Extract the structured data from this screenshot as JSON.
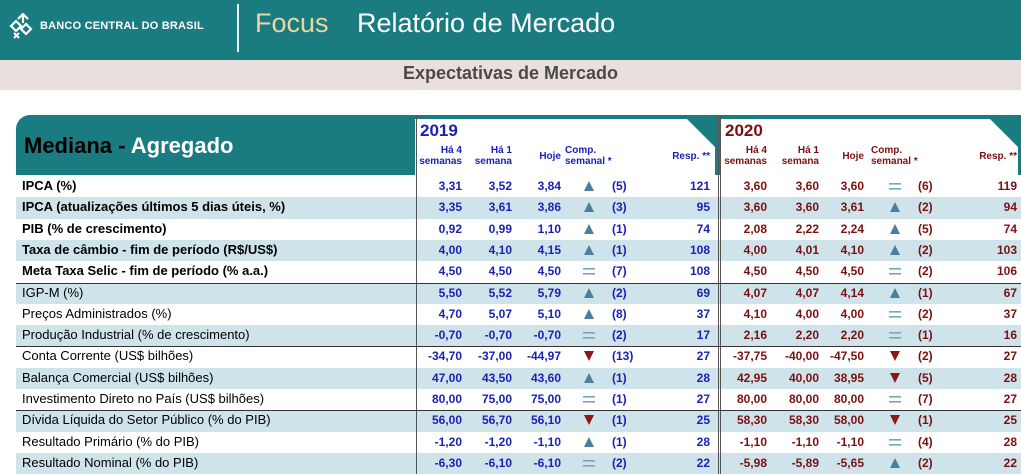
{
  "header": {
    "bank_name": "BANCO CENTRAL DO BRASIL",
    "focus": "Focus",
    "report_title": "Relatório de Mercado",
    "subtitle": "Expectativas de Mercado"
  },
  "colors": {
    "teal": "#1a7b80",
    "blue_2019": "#1a22b4",
    "red_2020": "#7a1010",
    "stripe": "#cfe4ea"
  },
  "table": {
    "title_main": "Mediana - ",
    "title_accent": "Agregado",
    "years": [
      "2019",
      "2020"
    ],
    "columns": {
      "ha4": [
        "Há 4",
        "semanas"
      ],
      "ha1": [
        "Há 1",
        "semana"
      ],
      "hoje": "Hoje",
      "comp": [
        "Comp.",
        "semanal *"
      ],
      "resp": "Resp. **"
    },
    "rows": [
      {
        "label": "IPCA (%)",
        "bold": true,
        "y2019": {
          "ha4": "3,31",
          "ha1": "3,52",
          "hoje": "3,84",
          "trend": "up",
          "weeks": "(5)",
          "resp": "121"
        },
        "y2020": {
          "ha4": "3,60",
          "ha1": "3,60",
          "hoje": "3,60",
          "trend": "eq",
          "weeks": "(6)",
          "resp": "119"
        }
      },
      {
        "label": "IPCA (atualizações últimos 5 dias úteis, %)",
        "bold": true,
        "y2019": {
          "ha4": "3,35",
          "ha1": "3,61",
          "hoje": "3,86",
          "trend": "up",
          "weeks": "(3)",
          "resp": "95"
        },
        "y2020": {
          "ha4": "3,60",
          "ha1": "3,60",
          "hoje": "3,61",
          "trend": "up",
          "weeks": "(2)",
          "resp": "94"
        }
      },
      {
        "label": "PIB (% de crescimento)",
        "bold": true,
        "y2019": {
          "ha4": "0,92",
          "ha1": "0,99",
          "hoje": "1,10",
          "trend": "up",
          "weeks": "(1)",
          "resp": "74"
        },
        "y2020": {
          "ha4": "2,08",
          "ha1": "2,22",
          "hoje": "2,24",
          "trend": "up",
          "weeks": "(5)",
          "resp": "74"
        }
      },
      {
        "label": "Taxa de câmbio - fim de período (R$/US$)",
        "bold": true,
        "y2019": {
          "ha4": "4,00",
          "ha1": "4,10",
          "hoje": "4,15",
          "trend": "up",
          "weeks": "(1)",
          "resp": "108"
        },
        "y2020": {
          "ha4": "4,00",
          "ha1": "4,01",
          "hoje": "4,10",
          "trend": "up",
          "weeks": "(2)",
          "resp": "103"
        }
      },
      {
        "label": "Meta Taxa Selic - fim de período (% a.a.)",
        "bold": true,
        "y2019": {
          "ha4": "4,50",
          "ha1": "4,50",
          "hoje": "4,50",
          "trend": "eq",
          "weeks": "(7)",
          "resp": "108"
        },
        "y2020": {
          "ha4": "4,50",
          "ha1": "4,50",
          "hoje": "4,50",
          "trend": "eq",
          "weeks": "(2)",
          "resp": "106"
        }
      },
      {
        "label": "IGP-M (%)",
        "bold": false,
        "y2019": {
          "ha4": "5,50",
          "ha1": "5,52",
          "hoje": "5,79",
          "trend": "up",
          "weeks": "(2)",
          "resp": "69"
        },
        "y2020": {
          "ha4": "4,07",
          "ha1": "4,07",
          "hoje": "4,14",
          "trend": "up",
          "weeks": "(1)",
          "resp": "67"
        }
      },
      {
        "label": "Preços Administrados (%)",
        "bold": false,
        "y2019": {
          "ha4": "4,70",
          "ha1": "5,07",
          "hoje": "5,10",
          "trend": "up",
          "weeks": "(8)",
          "resp": "37"
        },
        "y2020": {
          "ha4": "4,10",
          "ha1": "4,00",
          "hoje": "4,00",
          "trend": "eq",
          "weeks": "(2)",
          "resp": "37"
        }
      },
      {
        "label": "Produção Industrial (% de crescimento)",
        "bold": false,
        "y2019": {
          "ha4": "-0,70",
          "ha1": "-0,70",
          "hoje": "-0,70",
          "trend": "eq",
          "weeks": "(2)",
          "resp": "17"
        },
        "y2020": {
          "ha4": "2,16",
          "ha1": "2,20",
          "hoje": "2,20",
          "trend": "eq",
          "weeks": "(1)",
          "resp": "16"
        }
      },
      {
        "label": "Conta Corrente (US$ bilhões)",
        "bold": false,
        "y2019": {
          "ha4": "-34,70",
          "ha1": "-37,00",
          "hoje": "-44,97",
          "trend": "down",
          "weeks": "(13)",
          "resp": "27"
        },
        "y2020": {
          "ha4": "-37,75",
          "ha1": "-40,00",
          "hoje": "-47,50",
          "trend": "down",
          "weeks": "(2)",
          "resp": "27"
        }
      },
      {
        "label": "Balança Comercial (US$ bilhões)",
        "bold": false,
        "y2019": {
          "ha4": "47,00",
          "ha1": "43,50",
          "hoje": "43,60",
          "trend": "up",
          "weeks": "(1)",
          "resp": "28"
        },
        "y2020": {
          "ha4": "42,95",
          "ha1": "40,00",
          "hoje": "38,95",
          "trend": "down",
          "weeks": "(5)",
          "resp": "28"
        }
      },
      {
        "label": "Investimento Direto no País (US$ bilhões)",
        "bold": false,
        "y2019": {
          "ha4": "80,00",
          "ha1": "75,00",
          "hoje": "75,00",
          "trend": "eq",
          "weeks": "(1)",
          "resp": "27"
        },
        "y2020": {
          "ha4": "80,00",
          "ha1": "80,00",
          "hoje": "80,00",
          "trend": "eq",
          "weeks": "(7)",
          "resp": "27"
        }
      },
      {
        "label": "Dívida Líquida do Setor Público (% do PIB)",
        "bold": false,
        "y2019": {
          "ha4": "56,00",
          "ha1": "56,70",
          "hoje": "56,10",
          "trend": "down",
          "weeks": "(1)",
          "resp": "25"
        },
        "y2020": {
          "ha4": "58,30",
          "ha1": "58,30",
          "hoje": "58,00",
          "trend": "down",
          "weeks": "(1)",
          "resp": "25"
        }
      },
      {
        "label": "Resultado Primário (% do PIB)",
        "bold": false,
        "y2019": {
          "ha4": "-1,20",
          "ha1": "-1,20",
          "hoje": "-1,10",
          "trend": "up",
          "weeks": "(1)",
          "resp": "28"
        },
        "y2020": {
          "ha4": "-1,10",
          "ha1": "-1,10",
          "hoje": "-1,10",
          "trend": "eq",
          "weeks": "(4)",
          "resp": "28"
        }
      },
      {
        "label": "Resultado Nominal (% do PIB)",
        "bold": false,
        "y2019": {
          "ha4": "-6,30",
          "ha1": "-6,10",
          "hoje": "-6,10",
          "trend": "eq",
          "weeks": "(2)",
          "resp": "22"
        },
        "y2020": {
          "ha4": "-5,98",
          "ha1": "-5,89",
          "hoje": "-5,65",
          "trend": "up",
          "weeks": "(2)",
          "resp": "22"
        }
      }
    ]
  }
}
